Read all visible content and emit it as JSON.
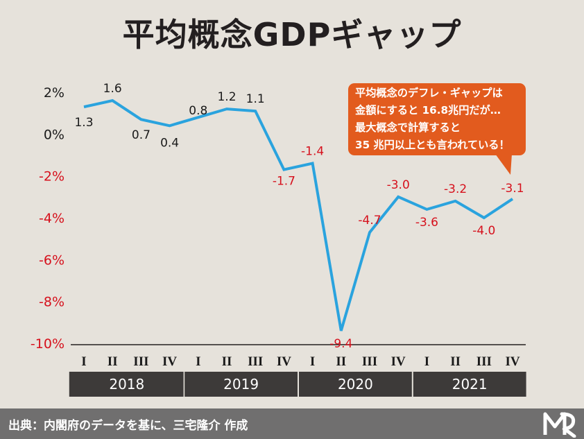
{
  "title": "平均概念GDPギャップ",
  "callout": {
    "lines": [
      "平均概念のデフレ・ギャップは",
      "金額にすると 16.8兆円だが…",
      "最大概念で計算すると",
      "35 兆円以上とも言われている！"
    ]
  },
  "footer": {
    "source": "出典：内閣府のデータを基に、三宅隆介 作成"
  },
  "colors": {
    "line": "#2aa3de",
    "negative_label": "#d6101c",
    "positive_label": "#1a1a1a",
    "callout_bg": "#e25b1e",
    "year_band": "#3d3a39",
    "footer_bg": "#706f6f",
    "background": "#e6e2db"
  },
  "chart_data": {
    "type": "line",
    "title": "平均概念GDPギャップ",
    "xlabel": "",
    "ylabel": "",
    "ylim": [
      -10,
      2
    ],
    "yticks": [
      2,
      0,
      -2,
      -4,
      -6,
      -8,
      -10
    ],
    "ytick_labels": [
      "2%",
      "0%",
      "-2%",
      "-4%",
      "-6%",
      "-8%",
      "-10%"
    ],
    "grid": false,
    "quarters": [
      "I",
      "II",
      "III",
      "IV",
      "I",
      "II",
      "III",
      "IV",
      "I",
      "II",
      "III",
      "IV",
      "I",
      "II",
      "III",
      "IV"
    ],
    "years": [
      "2018",
      "2019",
      "2020",
      "2021"
    ],
    "values": [
      1.3,
      1.6,
      0.7,
      0.4,
      0.8,
      1.2,
      1.1,
      -1.7,
      -1.4,
      -9.4,
      -4.7,
      -3.0,
      -3.6,
      -3.2,
      -4.0,
      -3.1
    ],
    "labels": [
      "1.3",
      "1.6",
      "0.7",
      "0.4",
      "0.8",
      "1.2",
      "1.1",
      "-1.7",
      "-1.4",
      "-9.4",
      "-4.7",
      "-3.0",
      "-3.6",
      "-3.2",
      "-4.0",
      "-3.1"
    ]
  }
}
